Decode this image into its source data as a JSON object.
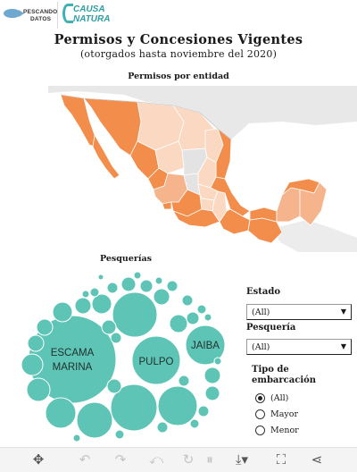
{
  "logos": {
    "pescando_line1": "PESCANDO",
    "pescando_line2": "DATOS",
    "causa_line1": "CAUSA",
    "causa_line2": "NATURA"
  },
  "header": {
    "title": "Permisos y Concesiones Vigentes",
    "subtitle": "(otorgados hasta noviembre del 2020)"
  },
  "map": {
    "title": "Permisos por entidad",
    "colors": {
      "high": "#f28d4b",
      "mid": "#f6b48c",
      "low": "#fbd8c2",
      "none": "#e3e3e3",
      "border": "#ffffff"
    }
  },
  "bubbles": {
    "title": "Pesquerías",
    "color": "#5ec4b6",
    "labels": {
      "escama_line1": "ESCAMA",
      "escama_line2": "MARINA",
      "pulpo": "PULPO",
      "jaiba": "JAIBA"
    }
  },
  "filters": {
    "estado": {
      "label": "Estado",
      "value": "(All)"
    },
    "pesqueria": {
      "label": "Pesquería",
      "value": "(All)"
    },
    "embarcacion": {
      "label_line1": "Tipo de",
      "label_line2": "embarcación",
      "options": [
        "(All)",
        "Mayor",
        "Menor"
      ],
      "selected": "(All)"
    }
  },
  "toolbar": {
    "icons": [
      "move-icon",
      "undo-icon",
      "redo-icon",
      "revert-icon",
      "refresh-icon",
      "pause-icon",
      "download-icon",
      "fullscreen-icon",
      "share-icon"
    ]
  }
}
